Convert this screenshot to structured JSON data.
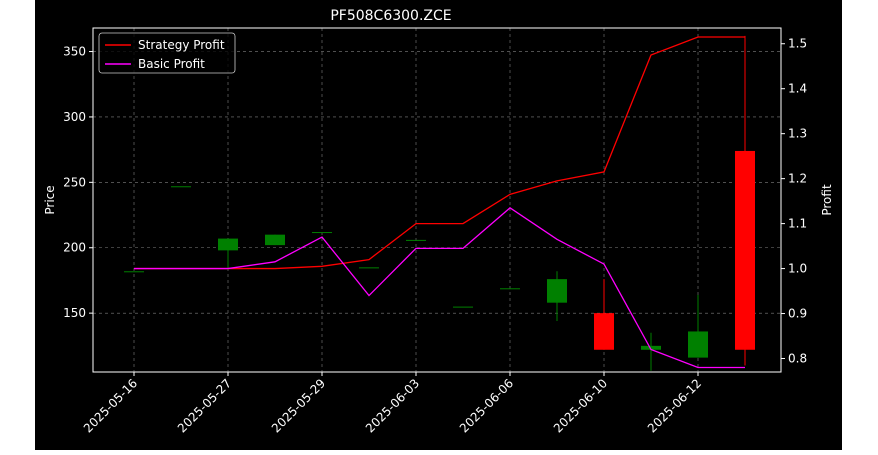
{
  "chart_data": {
    "type": "candlestick",
    "title": "PF508C6300.ZCE",
    "ylabel_left": "Price",
    "ylabel_right": "Profit",
    "x_tick_labels": [
      "2025-05-16",
      "2025-05-27",
      "2025-05-29",
      "2025-06-03",
      "2025-06-06",
      "2025-06-10",
      "2025-06-12"
    ],
    "left_axis": {
      "ylim": [
        105,
        368
      ],
      "ticks": [
        150,
        200,
        250,
        300,
        350
      ]
    },
    "right_axis": {
      "ylim": [
        0.77,
        1.535
      ],
      "ticks": [
        0.8,
        0.9,
        1.0,
        1.1,
        1.2,
        1.3,
        1.4,
        1.5
      ]
    },
    "grid": true,
    "legend_position": "top-left",
    "candles": [
      {
        "i": 0,
        "open": 182,
        "close": 182,
        "high": 182,
        "low": 182
      },
      {
        "i": 1,
        "open": 247,
        "close": 247,
        "high": 247,
        "low": 247
      },
      {
        "i": 2,
        "open": 198,
        "close": 207,
        "high": 207,
        "low": 183
      },
      {
        "i": 3,
        "open": 202,
        "close": 210,
        "high": 210,
        "low": 202
      },
      {
        "i": 4,
        "open": 212,
        "close": 212,
        "high": 212,
        "low": 212
      },
      {
        "i": 5,
        "open": 185,
        "close": 185,
        "high": 185,
        "low": 185
      },
      {
        "i": 6,
        "open": 206,
        "close": 206,
        "high": 206,
        "low": 206
      },
      {
        "i": 7,
        "open": 155,
        "close": 155,
        "high": 155,
        "low": 155
      },
      {
        "i": 8,
        "open": 169,
        "close": 169,
        "high": 169,
        "low": 169
      },
      {
        "i": 9,
        "open": 158,
        "close": 176,
        "high": 182,
        "low": 144
      },
      {
        "i": 10,
        "open": 150,
        "close": 122,
        "high": 176,
        "low": 122
      },
      {
        "i": 11,
        "open": 122,
        "close": 125,
        "high": 135,
        "low": 106
      },
      {
        "i": 12,
        "open": 116,
        "close": 136,
        "high": 164,
        "low": 116
      },
      {
        "i": 13,
        "open": 274,
        "close": 122,
        "high": 362,
        "low": 110
      }
    ],
    "up_color": "#008000",
    "down_color": "#ff0000",
    "series": [
      {
        "name": "Strategy Profit",
        "color": "#ff0000",
        "axis": "right",
        "values": [
          1.0,
          1.0,
          1.0,
          1.0,
          1.005,
          1.02,
          1.1,
          1.1,
          1.165,
          1.195,
          1.215,
          1.475,
          1.515,
          1.515
        ]
      },
      {
        "name": "Basic Profit",
        "color": "#ff00ff",
        "axis": "right",
        "values": [
          1.0,
          1.0,
          1.0,
          1.015,
          1.07,
          0.94,
          1.045,
          1.045,
          1.135,
          1.065,
          1.01,
          0.82,
          0.78,
          0.78
        ]
      }
    ]
  }
}
